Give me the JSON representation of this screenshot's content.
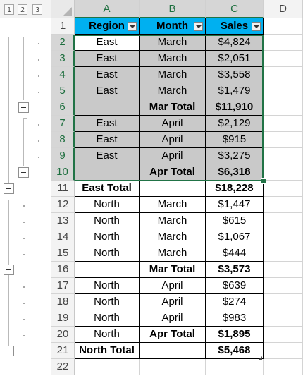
{
  "outline": {
    "levels": [
      "1",
      "2",
      "3"
    ]
  },
  "columns": [
    "A",
    "B",
    "C",
    "D"
  ],
  "rows": [
    {
      "num": "1",
      "region": "Region",
      "month": "Month",
      "sales": "Sales"
    },
    {
      "num": "2",
      "region": "East",
      "month": "March",
      "sales": "$4,824"
    },
    {
      "num": "3",
      "region": "East",
      "month": "March",
      "sales": "$2,051"
    },
    {
      "num": "4",
      "region": "East",
      "month": "March",
      "sales": "$3,558"
    },
    {
      "num": "5",
      "region": "East",
      "month": "March",
      "sales": "$1,479"
    },
    {
      "num": "6",
      "region": "",
      "month": "Mar Total",
      "sales": "$11,910"
    },
    {
      "num": "7",
      "region": "East",
      "month": "April",
      "sales": "$2,129"
    },
    {
      "num": "8",
      "region": "East",
      "month": "April",
      "sales": "$915"
    },
    {
      "num": "9",
      "region": "East",
      "month": "April",
      "sales": "$3,275"
    },
    {
      "num": "10",
      "region": "",
      "month": "Apr Total",
      "sales": "$6,318"
    },
    {
      "num": "11",
      "region": "East Total",
      "month": "",
      "sales": "$18,228"
    },
    {
      "num": "12",
      "region": "North",
      "month": "March",
      "sales": "$1,447"
    },
    {
      "num": "13",
      "region": "North",
      "month": "March",
      "sales": "$615"
    },
    {
      "num": "14",
      "region": "North",
      "month": "March",
      "sales": "$1,067"
    },
    {
      "num": "15",
      "region": "North",
      "month": "March",
      "sales": "$444"
    },
    {
      "num": "16",
      "region": "",
      "month": "Mar Total",
      "sales": "$3,573"
    },
    {
      "num": "17",
      "region": "North",
      "month": "April",
      "sales": "$639"
    },
    {
      "num": "18",
      "region": "North",
      "month": "April",
      "sales": "$274"
    },
    {
      "num": "19",
      "region": "North",
      "month": "April",
      "sales": "$983"
    },
    {
      "num": "20",
      "region": "North",
      "month": "Apr Total",
      "sales": "$1,895"
    },
    {
      "num": "21",
      "region": "North Total",
      "month": "",
      "sales": "$5,468"
    },
    {
      "num": "22",
      "region": "",
      "month": "",
      "sales": ""
    }
  ],
  "selection": {
    "range": "A2:C10",
    "columns": [
      "A",
      "B",
      "C"
    ]
  },
  "colors": {
    "header_fill": "#00b0f0",
    "selected_fill": "#c9c9c9",
    "accent": "#217346"
  }
}
